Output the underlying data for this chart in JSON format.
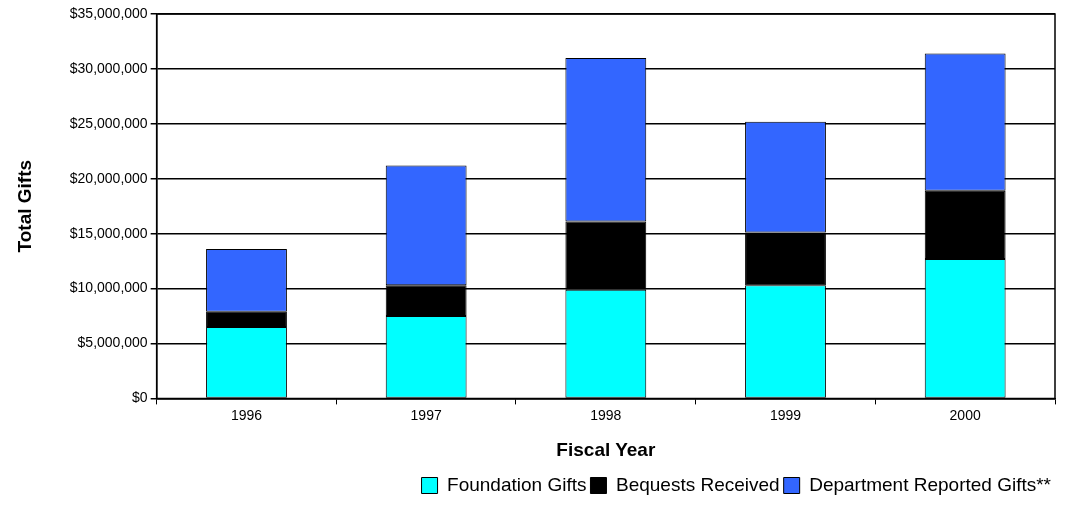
{
  "chart_data": {
    "type": "bar",
    "stacked": true,
    "xlabel": "Fiscal Year",
    "ylabel": "Total Gifts",
    "categories": [
      "1996",
      "1997",
      "1998",
      "1999",
      "2000"
    ],
    "series": [
      {
        "name": "Foundation Gifts",
        "color": "#00ffff",
        "values": [
          6500000,
          7500000,
          9900000,
          10300000,
          12700000
        ]
      },
      {
        "name": "Bequests Received",
        "color": "#000000",
        "values": [
          1400000,
          2800000,
          6200000,
          4800000,
          6200000
        ]
      },
      {
        "name": "Department Reported Gifts**",
        "color": "#3366ff",
        "values": [
          5700000,
          10900000,
          14900000,
          10100000,
          12500000
        ]
      }
    ],
    "ylim": [
      0,
      35000000
    ],
    "yticks": [
      {
        "value": 0,
        "label": "$0"
      },
      {
        "value": 5000000,
        "label": "$5,000,000"
      },
      {
        "value": 10000000,
        "label": "$10,000,000"
      },
      {
        "value": 15000000,
        "label": "$15,000,000"
      },
      {
        "value": 20000000,
        "label": "$20,000,000"
      },
      {
        "value": 25000000,
        "label": "$25,000,000"
      },
      {
        "value": 30000000,
        "label": "$30,000,000"
      },
      {
        "value": 35000000,
        "label": "$35,000,000"
      }
    ],
    "grid": "y",
    "legend": "bottom"
  }
}
